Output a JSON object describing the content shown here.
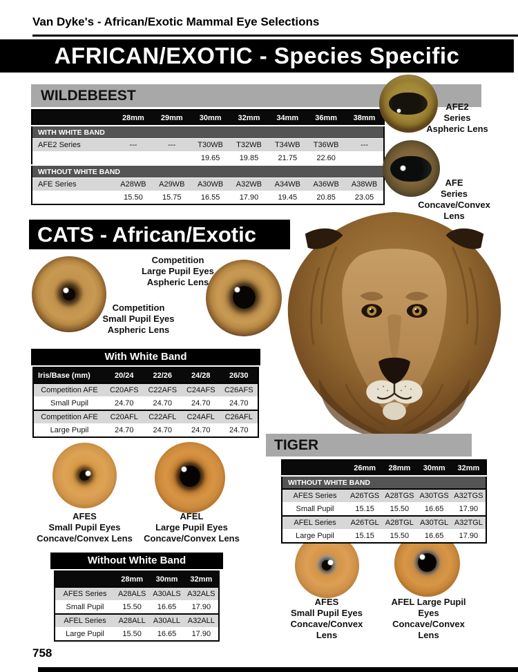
{
  "page": {
    "header": "Van Dyke's - African/Exotic Mammal Eye Selections",
    "banner": "AFRICAN/EXOTIC - Species Specific",
    "page_number": "758"
  },
  "colors": {
    "section_banner_gray": "#a8a8a8",
    "table_row_gray": "#d7d7d7",
    "table_section_gray": "#545454",
    "banner_black": "#000000"
  },
  "wildebeest": {
    "title": "WILDEBEEST",
    "afe2_label": "AFE2\nSeries\nAspheric Lens",
    "afe_label": "AFE\nSeries\nConcave/Convex\nLens",
    "table": {
      "header": [
        "",
        "28mm",
        "29mm",
        "30mm",
        "32mm",
        "34mm",
        "36mm",
        "38mm"
      ],
      "rows": [
        {
          "type": "section",
          "label": "WITH WHITE BAND"
        },
        {
          "type": "series",
          "cells": [
            "AFE2 Series",
            "---",
            "---",
            "T30WB",
            "T32WB",
            "T34WB",
            "T36WB",
            "---"
          ]
        },
        {
          "type": "price",
          "cells": [
            "",
            "",
            "",
            "19.65",
            "19.85",
            "21.75",
            "22.60",
            ""
          ]
        },
        {
          "type": "section",
          "label": "WITHOUT WHITE BAND"
        },
        {
          "type": "series",
          "cells": [
            "AFE Series",
            "A28WB",
            "A29WB",
            "A30WB",
            "A32WB",
            "A34WB",
            "A36WB",
            "A38WB"
          ]
        },
        {
          "type": "price",
          "cells": [
            "",
            "15.50",
            "15.75",
            "16.55",
            "17.90",
            "19.45",
            "20.85",
            "23.05"
          ]
        }
      ]
    }
  },
  "cats": {
    "title": "CATS - African/Exotic",
    "competition_large_label": "Competition\nLarge Pupil Eyes\nAspheric Lens",
    "competition_small_label": "Competition\nSmall Pupil Eyes\nAspheric Lens",
    "with_white_band": {
      "title": "With White Band",
      "table": {
        "header": [
          "Iris/Base (mm)",
          "20/24",
          "22/26",
          "24/28",
          "26/30"
        ],
        "rows": [
          {
            "type": "series",
            "cells": [
              "Competition AFE",
              "C20AFS",
              "C22AFS",
              "C24AFS",
              "C26AFS"
            ]
          },
          {
            "type": "price",
            "cells": [
              "Small Pupil",
              "24.70",
              "24.70",
              "24.70",
              "24.70"
            ]
          },
          {
            "type": "series",
            "cells": [
              "Competition AFE",
              "C20AFL",
              "C22AFL",
              "C24AFL",
              "C26AFL"
            ]
          },
          {
            "type": "price",
            "cells": [
              "Large Pupil",
              "24.70",
              "24.70",
              "24.70",
              "24.70"
            ]
          }
        ]
      }
    },
    "afes_label": "AFES\nSmall Pupil Eyes\nConcave/Convex Lens",
    "afel_label": "AFEL\nLarge Pupil Eyes\nConcave/Convex Lens",
    "without_white_band": {
      "title": "Without White Band",
      "table": {
        "header": [
          "",
          "28mm",
          "30mm",
          "32mm"
        ],
        "rows": [
          {
            "type": "series",
            "cells": [
              "AFES Series",
              "A28ALS",
              "A30ALS",
              "A32ALS"
            ]
          },
          {
            "type": "price",
            "cells": [
              "Small Pupil",
              "15.50",
              "16.65",
              "17.90"
            ]
          },
          {
            "type": "series",
            "cells": [
              "AFEL Series",
              "A28ALL",
              "A30ALL",
              "A32ALL"
            ]
          },
          {
            "type": "price",
            "cells": [
              "Large Pupil",
              "15.50",
              "16.65",
              "17.90"
            ]
          }
        ]
      }
    },
    "afes_bottom_label": "AFES\nSmall Pupil Eyes\nConcave/Convex\nLens",
    "afel_bottom_label": "AFEL Large Pupil\nEyes\nConcave/Convex\nLens"
  },
  "tiger": {
    "title": "TIGER",
    "table": {
      "header": [
        "",
        "26mm",
        "28mm",
        "30mm",
        "32mm"
      ],
      "rows": [
        {
          "type": "section",
          "label": "WITHOUT WHITE BAND"
        },
        {
          "type": "series",
          "cells": [
            "AFES Series",
            "A26TGS",
            "A28TGS",
            "A30TGS",
            "A32TGS"
          ]
        },
        {
          "type": "price",
          "cells": [
            "Small Pupil",
            "15.15",
            "15.50",
            "16.65",
            "17.90"
          ]
        },
        {
          "type": "series",
          "cells": [
            "AFEL Series",
            "A26TGL",
            "A28TGL",
            "A30TGL",
            "A32TGL"
          ]
        },
        {
          "type": "price",
          "cells": [
            "Large Pupil",
            "15.15",
            "15.50",
            "16.65",
            "17.90"
          ]
        }
      ]
    }
  }
}
